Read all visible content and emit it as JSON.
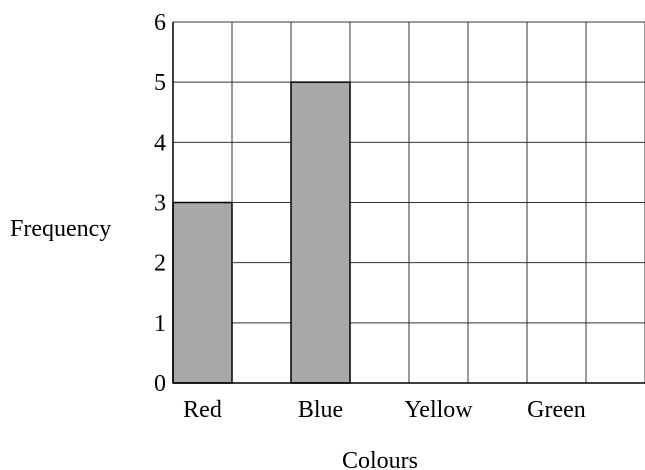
{
  "chart_data": {
    "type": "bar",
    "categories": [
      "Red",
      "Blue",
      "Yellow",
      "Green"
    ],
    "values": [
      3,
      5,
      null,
      null
    ],
    "title": "",
    "xlabel": "Colours",
    "ylabel": "Frequency",
    "ylim": [
      0,
      6
    ],
    "yticks": [
      "0",
      "1",
      "2",
      "3",
      "4",
      "5",
      "6"
    ],
    "grid": true,
    "bar_color": "#a8a8a8"
  }
}
